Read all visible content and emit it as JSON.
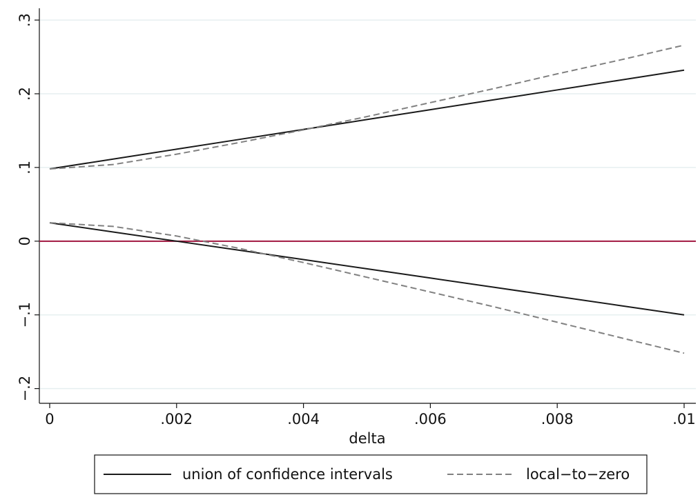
{
  "chart_data": {
    "type": "line",
    "x_label": "delta",
    "x": [
      0,
      0.001,
      0.002,
      0.003,
      0.004,
      0.005,
      0.006,
      0.007,
      0.008,
      0.009,
      0.01
    ],
    "series": [
      {
        "name": "union of confidence intervals",
        "color": "#1a1a1a",
        "dash": "solid",
        "upper": [
          0.098,
          0.1114,
          0.1248,
          0.1382,
          0.1516,
          0.165,
          0.1784,
          0.1918,
          0.2052,
          0.2186,
          0.232
        ],
        "lower": [
          0.025,
          0.0125,
          0,
          -0.0125,
          -0.025,
          -0.0375,
          -0.05,
          -0.0625,
          -0.075,
          -0.0875,
          -0.1
        ]
      },
      {
        "name": "local−to−zero",
        "color": "#808080",
        "dash": "dashed",
        "upper": [
          0.098,
          0.104,
          0.118,
          0.134,
          0.151,
          0.169,
          0.188,
          0.207,
          0.227,
          0.246,
          0.266
        ],
        "lower": [
          0.025,
          0.02,
          0.007,
          -0.01,
          -0.029,
          -0.049,
          -0.069,
          -0.089,
          -0.11,
          -0.131,
          -0.152
        ]
      }
    ],
    "reference_line": {
      "y": 0,
      "color": "#a0153e"
    },
    "xlim": [
      -0.000163,
      0.010185
    ],
    "ylim": [
      -0.22,
      0.316
    ],
    "xticks": [
      0,
      {
        "value": 0.002,
        "label": ".002"
      },
      {
        "value": 0.004,
        "label": ".004"
      },
      {
        "value": 0.006,
        "label": ".006"
      },
      {
        "value": 0.008,
        "label": ".008"
      },
      {
        "value": 0.01,
        "label": ".01"
      }
    ],
    "yticks": [
      {
        "value": -0.2,
        "label": "−.2"
      },
      {
        "value": -0.1,
        "label": "−.1"
      },
      0,
      {
        "value": 0.1,
        "label": ".1"
      },
      {
        "value": 0.2,
        "label": ".2"
      },
      {
        "value": 0.3,
        "label": ".3"
      }
    ],
    "grid": true,
    "legend": "bottom"
  }
}
